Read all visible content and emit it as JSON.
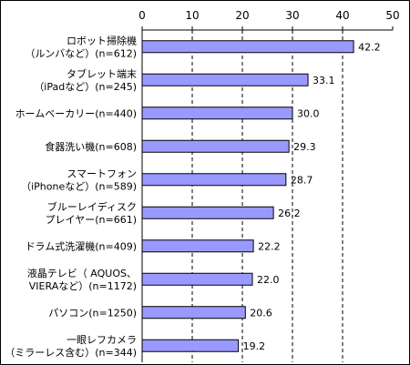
{
  "chart_data": {
    "type": "bar",
    "orientation": "horizontal",
    "title": "",
    "xlabel": "",
    "ylabel": "",
    "xlim": [
      0,
      50
    ],
    "ticks": [
      "0",
      "10",
      "20",
      "30",
      "40",
      "50"
    ],
    "grid": "dashed vertical",
    "bar_color": "#9999ff",
    "categories": [
      {
        "lines": [
          "ロボット掃除機",
          "（ルンバなど）(n=612)"
        ]
      },
      {
        "lines": [
          "タブレット端末",
          "（iPadなど）(n=245)"
        ]
      },
      {
        "lines": [
          "ホームベーカリー(n=440)"
        ]
      },
      {
        "lines": [
          "食器洗い機(n=608)"
        ]
      },
      {
        "lines": [
          "スマートフォン",
          "（iPhoneなど）(n=589)"
        ]
      },
      {
        "lines": [
          "ブルーレイディスク",
          "プレイヤー(n=661)"
        ]
      },
      {
        "lines": [
          "ドラム式洗濯機(n=409)"
        ]
      },
      {
        "lines": [
          "液晶テレビ（ AQUOS、",
          "VIERAなど）(n=1172)"
        ]
      },
      {
        "lines": [
          "パソコン(n=1250)"
        ]
      },
      {
        "lines": [
          "一眼レフカメラ",
          "（ミラーレス含む）(n=344)"
        ]
      }
    ],
    "values": [
      42.2,
      33.1,
      30.0,
      29.3,
      28.7,
      26.2,
      22.2,
      22.0,
      20.6,
      19.2
    ],
    "value_labels": [
      "42.2",
      "33.1",
      "30.0",
      "29.3",
      "28.7",
      "26.2",
      "22.2",
      "22.0",
      "20.6",
      "19.2"
    ]
  }
}
